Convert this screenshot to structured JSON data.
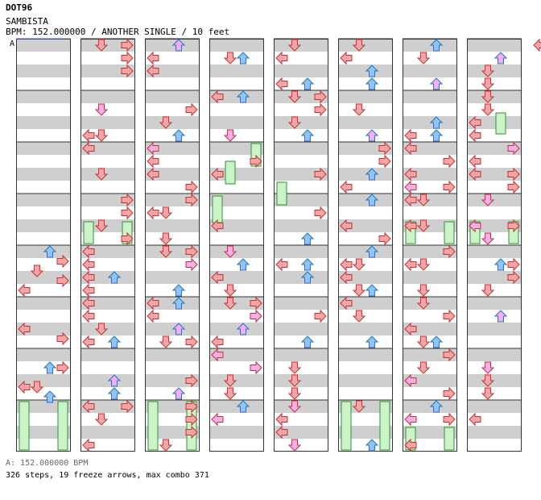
{
  "header": {
    "artist": "DOT96",
    "title": "SAMBISTA",
    "info": "BPM: 152.000000 / ANOTHER SINGLE / 10 feet",
    "marker": "A"
  },
  "footer": {
    "bpm_line": "A: 152.000000 BPM",
    "stats": "326 steps, 19 freeze arrows, max combo 371"
  },
  "colors": {
    "left": "#f4a6a6",
    "down": "#f4a6a6",
    "up": "#8fc4f4",
    "right": "#f4a6a6",
    "left_stroke": "#c83232",
    "up_stroke": "#2a6ec8",
    "eighth": "#f0b0f0",
    "freeze": "#c8f4c8",
    "freeze_stroke": "#3a8a3a",
    "stripe": "#cfcfcf",
    "measure": "#333333"
  },
  "columns": 8
}
